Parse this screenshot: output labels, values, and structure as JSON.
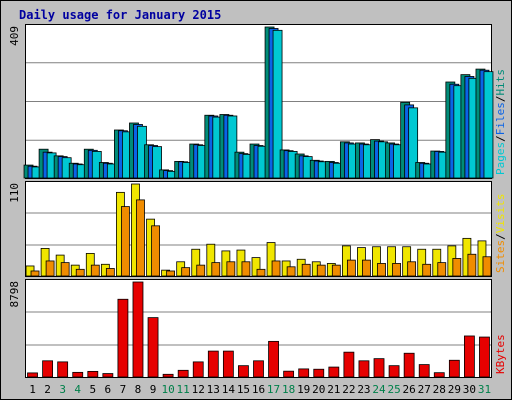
{
  "chart_data": {
    "type": "bar",
    "title": "Daily usage for January 2015",
    "categories": [
      "1",
      "2",
      "3",
      "4",
      "5",
      "6",
      "7",
      "8",
      "9",
      "10",
      "11",
      "12",
      "13",
      "14",
      "15",
      "16",
      "17",
      "18",
      "19",
      "20",
      "21",
      "22",
      "23",
      "24",
      "25",
      "26",
      "27",
      "28",
      "29",
      "30",
      "31"
    ],
    "weekend_days": [
      "3",
      "4",
      "10",
      "11",
      "17",
      "18",
      "24",
      "25",
      "31"
    ],
    "panels": [
      {
        "name": "top",
        "ymax_label": "409",
        "ymax": 409,
        "legend": [
          {
            "text": "Pages",
            "color": "#00c8d2"
          },
          {
            "text": "/",
            "color": "#000000"
          },
          {
            "text": "Files",
            "color": "#0a64e6"
          },
          {
            "text": "/",
            "color": "#000000"
          },
          {
            "text": "Hits",
            "color": "#008c78"
          }
        ],
        "series": [
          {
            "name": "Hits",
            "color": "#008c78",
            "values": [
              35,
              78,
              60,
              40,
              78,
              42,
              130,
              149,
              90,
              22,
              45,
              92,
              170,
              172,
              70,
              92,
              409,
              76,
              65,
              48,
              45,
              98,
              95,
              104,
              95,
              205,
              42,
              73,
              260,
              280,
              295
            ]
          },
          {
            "name": "Files",
            "color": "#0a64e6",
            "values": [
              32,
              70,
              58,
              38,
              75,
              40,
              128,
              145,
              88,
              20,
              44,
              90,
              168,
              170,
              66,
              88,
              405,
              74,
              60,
              46,
              42,
              95,
              92,
              100,
              92,
              198,
              40,
              72,
              254,
              275,
              292
            ]
          },
          {
            "name": "Pages",
            "color": "#00c8d2",
            "values": [
              30,
              68,
              55,
              36,
              72,
              38,
              125,
              140,
              85,
              18,
              42,
              88,
              165,
              168,
              64,
              86,
              400,
              72,
              58,
              44,
              40,
              92,
              90,
              98,
              90,
              190,
              38,
              70,
              250,
              270,
              288
            ]
          }
        ]
      },
      {
        "name": "middle",
        "ymax_label": "110",
        "ymax": 110,
        "legend": [
          {
            "text": "Sites",
            "color": "#f08c00"
          },
          {
            "text": "/",
            "color": "#000000"
          },
          {
            "text": "Visits",
            "color": "#f0e600"
          }
        ],
        "series": [
          {
            "name": "Visits",
            "color": "#f0e600",
            "values": [
              12,
              33,
              25,
              13,
              27,
              14,
              100,
              110,
              68,
              7,
              17,
              32,
              38,
              30,
              31,
              22,
              40,
              18,
              20,
              17,
              15,
              36,
              34,
              35,
              35,
              35,
              32,
              32,
              36,
              45,
              42
            ]
          },
          {
            "name": "Sites",
            "color": "#f08c00",
            "values": [
              6,
              18,
              16,
              8,
              13,
              9,
              83,
              91,
              60,
              6,
              10,
              13,
              16,
              17,
              17,
              8,
              18,
              11,
              14,
              13,
              13,
              19,
              19,
              15,
              15,
              17,
              14,
              16,
              21,
              26,
              23
            ]
          }
        ]
      },
      {
        "name": "bottom",
        "ymax_label": "8798",
        "ymax": 8798,
        "legend": [
          {
            "text": "KBytes",
            "color": "#e60000"
          }
        ],
        "series": [
          {
            "name": "KBytes",
            "color": "#e60000",
            "values": [
              380,
              1500,
              1400,
              430,
              520,
              320,
              7200,
              8798,
              5500,
              250,
              620,
              1400,
              2400,
              2400,
              1050,
              1500,
              3300,
              540,
              750,
              720,
              920,
              2300,
              1500,
              1700,
              1050,
              2200,
              1150,
              400,
              1550,
              3800,
              3700
            ]
          }
        ]
      }
    ]
  }
}
